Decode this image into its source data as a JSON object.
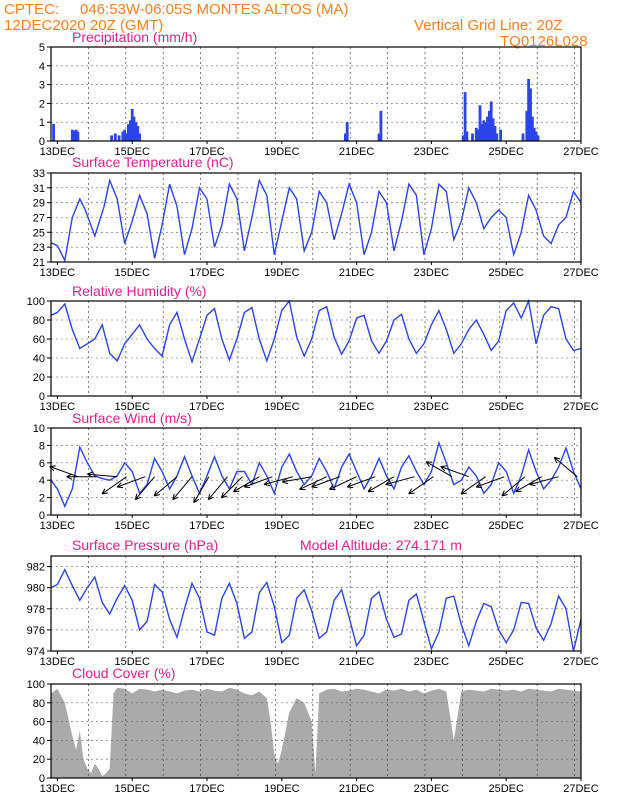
{
  "header": {
    "source": "CPTEC:",
    "location": "046:53W-06:05S  MONTES ALTOS (MA)",
    "init_time": "12DEC2020 20Z (GMT)",
    "grid_note": "Vertical Grid Line: 20Z",
    "model": "TQ0126L028"
  },
  "chart_data": [
    {
      "type": "bar",
      "title": "Precipitation (mm/h)",
      "ylim": [
        0,
        5
      ],
      "yticks": [
        0,
        1,
        2,
        3,
        4,
        5
      ],
      "xticks": [
        "13DEC",
        "15DEC",
        "17DEC",
        "19DEC",
        "21DEC",
        "23DEC",
        "25DEC",
        "27DEC"
      ],
      "x_range_days": [
        12.83,
        27.0
      ],
      "bars": [
        {
          "x": 12.9,
          "value": 0.9
        },
        {
          "x": 13.4,
          "value": 0.6
        },
        {
          "x": 13.45,
          "value": 0.55
        },
        {
          "x": 13.5,
          "value": 0.6
        },
        {
          "x": 13.55,
          "value": 0.5
        },
        {
          "x": 14.45,
          "value": 0.3
        },
        {
          "x": 14.55,
          "value": 0.4
        },
        {
          "x": 14.65,
          "value": 0.3
        },
        {
          "x": 14.75,
          "value": 0.5
        },
        {
          "x": 14.8,
          "value": 0.6
        },
        {
          "x": 14.85,
          "value": 0.4
        },
        {
          "x": 14.9,
          "value": 0.9
        },
        {
          "x": 14.95,
          "value": 1.1
        },
        {
          "x": 15.0,
          "value": 1.7
        },
        {
          "x": 15.05,
          "value": 1.3
        },
        {
          "x": 15.1,
          "value": 1.0
        },
        {
          "x": 15.15,
          "value": 0.8
        },
        {
          "x": 15.2,
          "value": 0.4
        },
        {
          "x": 20.7,
          "value": 0.4
        },
        {
          "x": 20.75,
          "value": 1.0
        },
        {
          "x": 21.6,
          "value": 0.4
        },
        {
          "x": 21.65,
          "value": 1.6
        },
        {
          "x": 23.85,
          "value": 0.3
        },
        {
          "x": 23.9,
          "value": 2.6
        },
        {
          "x": 23.95,
          "value": 0.5
        },
        {
          "x": 24.1,
          "value": 0.4
        },
        {
          "x": 24.2,
          "value": 0.7
        },
        {
          "x": 24.25,
          "value": 0.6
        },
        {
          "x": 24.3,
          "value": 1.9
        },
        {
          "x": 24.35,
          "value": 0.9
        },
        {
          "x": 24.4,
          "value": 1.1
        },
        {
          "x": 24.45,
          "value": 1.0
        },
        {
          "x": 24.5,
          "value": 1.3
        },
        {
          "x": 24.55,
          "value": 1.6
        },
        {
          "x": 24.6,
          "value": 2.1
        },
        {
          "x": 24.65,
          "value": 1.2
        },
        {
          "x": 24.7,
          "value": 0.8
        },
        {
          "x": 24.75,
          "value": 0.4
        },
        {
          "x": 24.85,
          "value": 0.6
        },
        {
          "x": 25.45,
          "value": 0.4
        },
        {
          "x": 25.55,
          "value": 1.6
        },
        {
          "x": 25.6,
          "value": 3.3
        },
        {
          "x": 25.65,
          "value": 2.8
        },
        {
          "x": 25.7,
          "value": 1.3
        },
        {
          "x": 25.75,
          "value": 0.7
        },
        {
          "x": 25.8,
          "value": 0.5
        },
        {
          "x": 25.85,
          "value": 0.3
        }
      ]
    },
    {
      "type": "line",
      "title": "Surface Temperature (nC)",
      "ylim": [
        21,
        33
      ],
      "yticks": [
        21,
        23,
        25,
        27,
        29,
        31,
        33
      ],
      "xticks": [
        "13DEC",
        "15DEC",
        "17DEC",
        "19DEC",
        "21DEC",
        "23DEC",
        "25DEC",
        "27DEC"
      ],
      "x": [
        12.83,
        13.0,
        13.2,
        13.4,
        13.6,
        13.75,
        14.0,
        14.25,
        14.4,
        14.6,
        14.8,
        15.0,
        15.2,
        15.4,
        15.6,
        15.8,
        16.0,
        16.2,
        16.4,
        16.6,
        16.8,
        17.0,
        17.2,
        17.4,
        17.6,
        17.8,
        18.0,
        18.2,
        18.4,
        18.6,
        18.8,
        19.0,
        19.2,
        19.4,
        19.6,
        19.8,
        20.0,
        20.2,
        20.4,
        20.6,
        20.8,
        21.0,
        21.2,
        21.4,
        21.6,
        21.8,
        22.0,
        22.2,
        22.4,
        22.6,
        22.8,
        23.0,
        23.2,
        23.4,
        23.6,
        23.8,
        24.0,
        24.2,
        24.4,
        24.6,
        24.8,
        25.0,
        25.2,
        25.4,
        25.6,
        25.8,
        26.0,
        26.2,
        26.4,
        26.6,
        26.8,
        27.0
      ],
      "y": [
        23.6,
        23.2,
        21.2,
        27.0,
        29.5,
        28.0,
        24.5,
        28.5,
        32.0,
        29.5,
        23.5,
        26.5,
        30.0,
        27.5,
        21.5,
        26.0,
        31.5,
        28.5,
        22.0,
        25.5,
        31.0,
        29.5,
        23.0,
        26.0,
        31.5,
        29.5,
        22.5,
        27.0,
        32.0,
        30.0,
        22.0,
        26.5,
        31.0,
        29.5,
        22.5,
        25.0,
        30.5,
        29.0,
        24.0,
        27.5,
        31.5,
        29.0,
        22.0,
        25.0,
        30.5,
        29.0,
        22.5,
        26.5,
        31.5,
        30.0,
        22.0,
        25.5,
        31.5,
        30.5,
        24.0,
        26.5,
        31.0,
        29.0,
        25.5,
        27.0,
        28.0,
        27.0,
        22.0,
        25.0,
        30.0,
        28.0,
        24.5,
        23.5,
        26.0,
        27.0,
        30.5,
        29.0
      ]
    },
    {
      "type": "line",
      "title": "Relative Humidity (%)",
      "ylim": [
        0,
        100
      ],
      "yticks": [
        0,
        20,
        40,
        60,
        80,
        100
      ],
      "xticks": [
        "13DEC",
        "15DEC",
        "17DEC",
        "19DEC",
        "21DEC",
        "23DEC",
        "25DEC",
        "27DEC"
      ],
      "x": [
        12.83,
        13.0,
        13.2,
        13.4,
        13.6,
        13.8,
        14.0,
        14.2,
        14.4,
        14.6,
        14.8,
        15.0,
        15.2,
        15.4,
        15.6,
        15.8,
        16.0,
        16.2,
        16.4,
        16.6,
        16.8,
        17.0,
        17.2,
        17.4,
        17.6,
        17.8,
        18.0,
        18.2,
        18.4,
        18.6,
        18.8,
        19.0,
        19.2,
        19.4,
        19.6,
        19.8,
        20.0,
        20.2,
        20.4,
        20.6,
        20.8,
        21.0,
        21.2,
        21.4,
        21.6,
        21.8,
        22.0,
        22.2,
        22.4,
        22.6,
        22.8,
        23.0,
        23.2,
        23.4,
        23.6,
        23.8,
        24.0,
        24.2,
        24.4,
        24.6,
        24.8,
        25.0,
        25.2,
        25.4,
        25.6,
        25.8,
        26.0,
        26.2,
        26.4,
        26.6,
        26.8,
        27.0
      ],
      "y": [
        85,
        88,
        97,
        70,
        50,
        55,
        60,
        75,
        45,
        37,
        55,
        65,
        75,
        60,
        50,
        42,
        75,
        88,
        60,
        36,
        60,
        85,
        92,
        60,
        38,
        60,
        88,
        93,
        60,
        37,
        60,
        90,
        100,
        62,
        42,
        60,
        90,
        94,
        62,
        44,
        58,
        82,
        85,
        58,
        45,
        58,
        80,
        86,
        60,
        45,
        55,
        75,
        90,
        70,
        45,
        55,
        70,
        80,
        65,
        48,
        58,
        90,
        98,
        82,
        100,
        55,
        85,
        94,
        92,
        60,
        48,
        50
      ]
    },
    {
      "type": "line",
      "title": "Surface Wind (m/s)",
      "ylim": [
        0,
        10
      ],
      "yticks": [
        0,
        2,
        4,
        6,
        8,
        10
      ],
      "xticks": [
        "13DEC",
        "15DEC",
        "17DEC",
        "19DEC",
        "21DEC",
        "23DEC",
        "25DEC",
        "27DEC"
      ],
      "x": [
        12.83,
        13.0,
        13.2,
        13.4,
        13.6,
        13.8,
        14.0,
        14.2,
        14.4,
        14.6,
        14.8,
        15.0,
        15.2,
        15.4,
        15.6,
        15.8,
        16.0,
        16.2,
        16.4,
        16.6,
        16.8,
        17.0,
        17.2,
        17.4,
        17.6,
        17.8,
        18.0,
        18.2,
        18.4,
        18.6,
        18.8,
        19.0,
        19.2,
        19.4,
        19.6,
        19.8,
        20.0,
        20.2,
        20.4,
        20.6,
        20.8,
        21.0,
        21.2,
        21.4,
        21.6,
        21.8,
        22.0,
        22.2,
        22.4,
        22.6,
        22.8,
        23.0,
        23.2,
        23.4,
        23.6,
        23.8,
        24.0,
        24.2,
        24.4,
        24.6,
        24.8,
        25.0,
        25.2,
        25.4,
        25.6,
        25.8,
        26.0,
        26.2,
        26.4,
        26.6,
        26.8,
        27.0
      ],
      "y": [
        4.0,
        3.0,
        1.0,
        3.0,
        7.8,
        6.0,
        4.5,
        4.2,
        4.0,
        4.5,
        6.0,
        5.0,
        2.5,
        3.5,
        6.5,
        5.0,
        3.0,
        4.5,
        6.7,
        4.5,
        2.5,
        4.5,
        6.7,
        4.5,
        3.0,
        5.0,
        5.0,
        3.5,
        6.0,
        4.5,
        2.5,
        5.5,
        7.0,
        5.0,
        3.5,
        4.5,
        6.5,
        5.0,
        3.0,
        5.5,
        7.0,
        5.0,
        3.0,
        4.5,
        6.5,
        4.5,
        3.0,
        5.5,
        6.8,
        5.0,
        3.5,
        5.0,
        8.3,
        6.0,
        3.5,
        4.0,
        5.5,
        4.5,
        2.5,
        3.5,
        6.0,
        5.0,
        2.5,
        4.5,
        7.5,
        5.0,
        3.0,
        4.0,
        5.5,
        7.7,
        5.0,
        3.0
      ],
      "wind_vectors": [
        {
          "x": 13.55,
          "angle_deg": 160
        },
        {
          "x": 14.05,
          "angle_deg": 180
        },
        {
          "x": 14.6,
          "angle_deg": 175
        },
        {
          "x": 14.85,
          "angle_deg": 215
        },
        {
          "x": 15.35,
          "angle_deg": 200
        },
        {
          "x": 15.6,
          "angle_deg": 230
        },
        {
          "x": 16.2,
          "angle_deg": 220
        },
        {
          "x": 16.6,
          "angle_deg": 230
        },
        {
          "x": 17.05,
          "angle_deg": 240
        },
        {
          "x": 17.55,
          "angle_deg": 230
        },
        {
          "x": 17.95,
          "angle_deg": 225
        },
        {
          "x": 18.4,
          "angle_deg": 210
        },
        {
          "x": 18.75,
          "angle_deg": 200
        },
        {
          "x": 19.3,
          "angle_deg": 195
        },
        {
          "x": 19.8,
          "angle_deg": 190
        },
        {
          "x": 20.2,
          "angle_deg": 205
        },
        {
          "x": 20.55,
          "angle_deg": 200
        },
        {
          "x": 21.0,
          "angle_deg": 205
        },
        {
          "x": 21.5,
          "angle_deg": 200
        },
        {
          "x": 22.0,
          "angle_deg": 210
        },
        {
          "x": 22.55,
          "angle_deg": 195
        },
        {
          "x": 23.05,
          "angle_deg": 215
        },
        {
          "x": 23.55,
          "angle_deg": 150
        },
        {
          "x": 24.0,
          "angle_deg": 160
        },
        {
          "x": 24.45,
          "angle_deg": 215
        },
        {
          "x": 24.95,
          "angle_deg": 200
        },
        {
          "x": 25.5,
          "angle_deg": 220
        },
        {
          "x": 25.95,
          "angle_deg": 210
        },
        {
          "x": 26.4,
          "angle_deg": 195
        },
        {
          "x": 26.9,
          "angle_deg": 140
        }
      ]
    },
    {
      "type": "line",
      "title": "Surface Pressure (hPa)",
      "annotation": "Model Altitude: 274.171 m",
      "ylim": [
        974,
        983
      ],
      "yticks": [
        974,
        976,
        978,
        980,
        982
      ],
      "xticks": [
        "13DEC",
        "15DEC",
        "17DEC",
        "19DEC",
        "21DEC",
        "23DEC",
        "25DEC",
        "27DEC"
      ],
      "x": [
        12.83,
        13.0,
        13.2,
        13.4,
        13.6,
        13.8,
        14.0,
        14.2,
        14.4,
        14.6,
        14.8,
        15.0,
        15.2,
        15.4,
        15.6,
        15.8,
        16.0,
        16.2,
        16.4,
        16.6,
        16.8,
        17.0,
        17.2,
        17.4,
        17.6,
        17.8,
        18.0,
        18.2,
        18.4,
        18.6,
        18.8,
        19.0,
        19.2,
        19.4,
        19.6,
        19.8,
        20.0,
        20.2,
        20.4,
        20.6,
        20.8,
        21.0,
        21.2,
        21.4,
        21.6,
        21.8,
        22.0,
        22.2,
        22.4,
        22.6,
        22.8,
        23.0,
        23.2,
        23.4,
        23.6,
        23.8,
        24.0,
        24.2,
        24.4,
        24.6,
        24.8,
        25.0,
        25.2,
        25.4,
        25.6,
        25.8,
        26.0,
        26.2,
        26.4,
        26.6,
        26.8,
        27.0
      ],
      "y": [
        980.0,
        980.3,
        981.7,
        980.2,
        978.8,
        980.0,
        981.0,
        978.6,
        977.5,
        979.0,
        980.2,
        978.8,
        976.0,
        976.8,
        980.3,
        979.6,
        977.0,
        975.3,
        978.0,
        980.4,
        979.0,
        975.8,
        975.5,
        979.0,
        980.4,
        978.5,
        975.2,
        975.8,
        979.5,
        980.5,
        978.2,
        974.8,
        975.5,
        979.0,
        979.8,
        977.8,
        975.2,
        975.8,
        978.8,
        979.8,
        977.2,
        974.5,
        975.5,
        979.0,
        979.6,
        977.0,
        975.3,
        975.6,
        978.8,
        979.4,
        976.8,
        974.2,
        975.8,
        979.0,
        979.2,
        976.5,
        974.5,
        976.8,
        978.5,
        978.2,
        976.0,
        974.8,
        976.0,
        978.6,
        978.5,
        976.2,
        975.0,
        976.6,
        979.2,
        978.0,
        974.0,
        977.0
      ]
    },
    {
      "type": "area",
      "title": "Cloud Cover (%)",
      "ylim": [
        0,
        100
      ],
      "yticks": [
        0,
        20,
        40,
        60,
        80,
        100
      ],
      "xticks": [
        "13DEC",
        "15DEC",
        "17DEC",
        "19DEC",
        "21DEC",
        "23DEC",
        "25DEC",
        "27DEC"
      ],
      "x": [
        12.83,
        13.0,
        13.2,
        13.4,
        13.5,
        13.6,
        13.7,
        13.8,
        13.9,
        14.0,
        14.1,
        14.2,
        14.3,
        14.4,
        14.5,
        14.6,
        14.8,
        15.0,
        15.2,
        15.4,
        15.6,
        15.8,
        16.0,
        16.2,
        16.4,
        16.6,
        16.8,
        17.0,
        17.2,
        17.4,
        17.6,
        17.8,
        18.0,
        18.2,
        18.4,
        18.6,
        18.7,
        18.8,
        18.9,
        19.0,
        19.2,
        19.4,
        19.6,
        19.8,
        19.9,
        20.0,
        20.2,
        20.4,
        20.6,
        20.8,
        21.0,
        21.2,
        21.4,
        21.6,
        21.8,
        22.0,
        22.2,
        22.4,
        22.6,
        22.8,
        23.0,
        23.2,
        23.4,
        23.6,
        23.8,
        24.0,
        24.2,
        24.4,
        24.6,
        24.8,
        25.0,
        25.2,
        25.4,
        25.6,
        25.8,
        26.0,
        26.2,
        26.4,
        26.6,
        26.8,
        27.0
      ],
      "y": [
        90,
        95,
        80,
        45,
        30,
        50,
        20,
        10,
        5,
        15,
        10,
        2,
        5,
        10,
        90,
        96,
        95,
        90,
        95,
        94,
        92,
        94,
        92,
        90,
        93,
        94,
        92,
        95,
        93,
        92,
        96,
        94,
        90,
        88,
        92,
        85,
        60,
        25,
        15,
        30,
        70,
        85,
        80,
        60,
        5,
        90,
        94,
        95,
        92,
        93,
        95,
        94,
        92,
        90,
        94,
        93,
        95,
        92,
        94,
        90,
        93,
        95,
        92,
        40,
        92,
        94,
        93,
        92,
        95,
        94,
        93,
        94,
        92,
        95,
        94,
        93,
        92,
        95,
        94,
        93,
        92
      ]
    }
  ]
}
